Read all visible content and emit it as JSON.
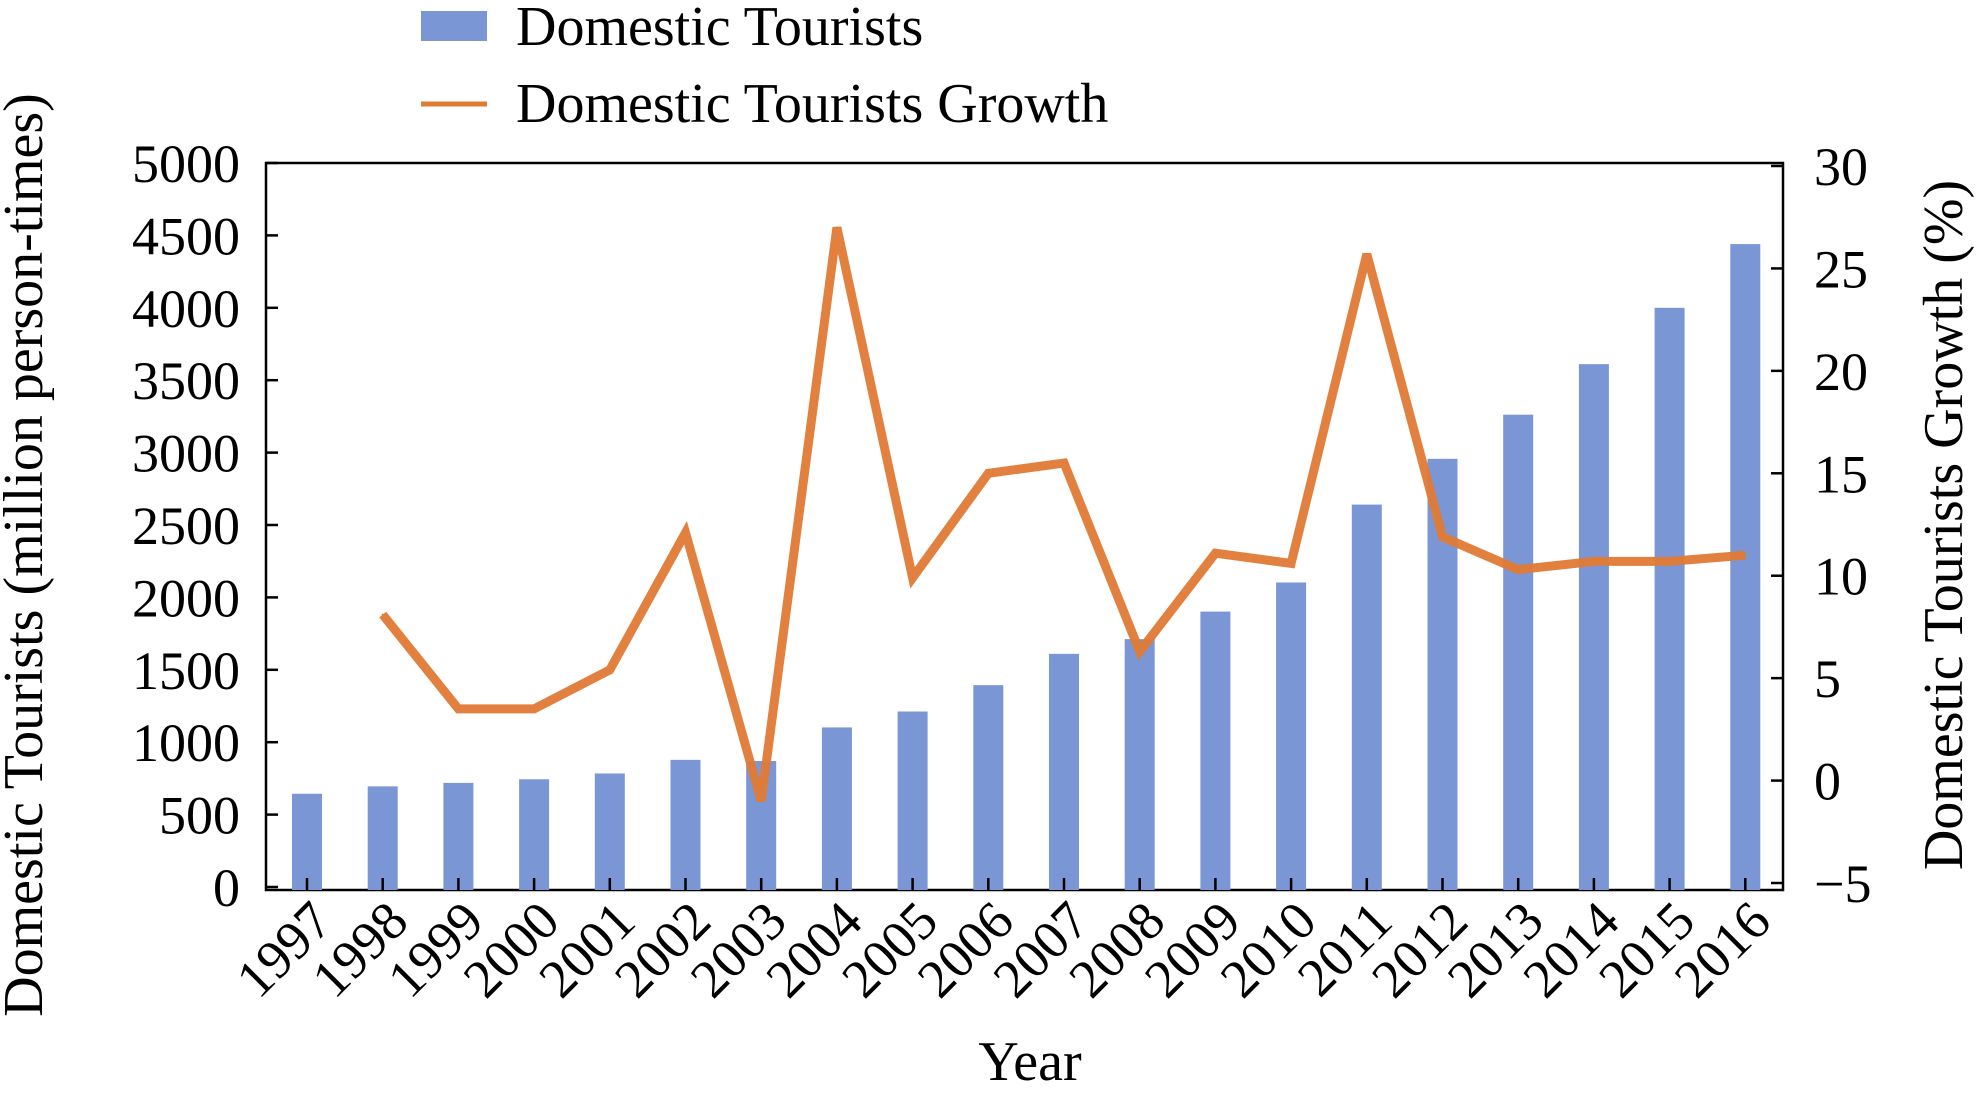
{
  "chart_data": {
    "type": "bar",
    "title": "",
    "xlabel": "Year",
    "ylabel": "Domestic Tourists (million person-times)",
    "y2label": "Domestic Tourists Growth (%)",
    "ylim": [
      0,
      5000
    ],
    "y2lim": [
      -5,
      30
    ],
    "yticks": [
      "0",
      "500",
      "1000",
      "1500",
      "2000",
      "2500",
      "3000",
      "3500",
      "4000",
      "4500",
      "5000"
    ],
    "y2ticks": [
      "−5",
      "0",
      "5",
      "10",
      "15",
      "20",
      "25",
      "30"
    ],
    "categories": [
      "1997",
      "1998",
      "1999",
      "2000",
      "2001",
      "2002",
      "2003",
      "2004",
      "2005",
      "2006",
      "2007",
      "2008",
      "2009",
      "2010",
      "2011",
      "2012",
      "2013",
      "2014",
      "2015",
      "2016"
    ],
    "legend_position": "top",
    "grid": false,
    "series": [
      {
        "name": "Domestic Tourists",
        "type": "bar",
        "axis": "left",
        "color": "#7b96d4",
        "values": [
          644,
          695,
          719,
          744,
          784,
          878,
          870,
          1102,
          1212,
          1394,
          1610,
          1712,
          1902,
          2103,
          2641,
          2957,
          3262,
          3611,
          4000,
          4440
        ]
      },
      {
        "name": "Domestic Tourists Growth",
        "type": "line",
        "axis": "right",
        "color": "#e07a35",
        "values": [
          null,
          8.1,
          3.5,
          3.5,
          5.4,
          12.1,
          -1.0,
          27.0,
          9.9,
          15.0,
          15.5,
          6.3,
          11.1,
          10.6,
          25.7,
          11.9,
          10.3,
          10.7,
          10.7,
          11.0
        ]
      }
    ]
  }
}
